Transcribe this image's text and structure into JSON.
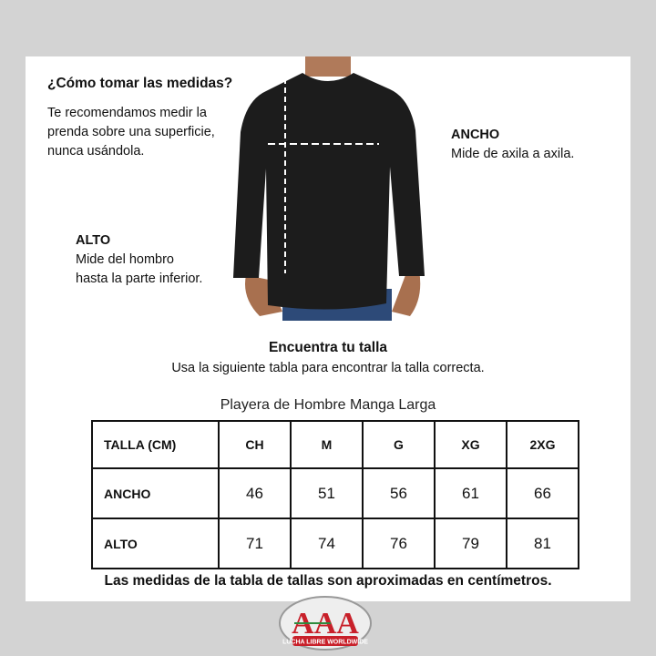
{
  "howto": {
    "title": "¿Cómo tomar las medidas?",
    "text": [
      "Te recomendamos medir la",
      "prenda sobre una superficie,",
      "nunca usándola."
    ]
  },
  "ancho": {
    "title": "ANCHO",
    "text": "Mide de axila a axila."
  },
  "alto": {
    "title": "ALTO",
    "text": [
      "Mide del hombro",
      "hasta la parte inferior."
    ]
  },
  "find": {
    "title": "Encuentra tu talla",
    "subtitle": "Usa la siguiente tabla para encontrar la talla correcta."
  },
  "table": {
    "caption": "Playera de Hombre Manga Larga",
    "header": [
      "TALLA (CM)",
      "CH",
      "M",
      "G",
      "XG",
      "2XG"
    ],
    "rows": [
      [
        "ANCHO",
        "46",
        "51",
        "56",
        "61",
        "66"
      ],
      [
        "ALTO",
        "71",
        "74",
        "76",
        "79",
        "81"
      ]
    ]
  },
  "note": "Las medidas de la tabla de tallas son aproximadas en centímetros.",
  "logo": {
    "text": "AAA",
    "tagline": "LUCHA LIBRE WORLDWIDE"
  },
  "colors": {
    "background": "#d3d3d3",
    "logo_red": "#c8202a",
    "logo_green": "#2e8b3e"
  }
}
